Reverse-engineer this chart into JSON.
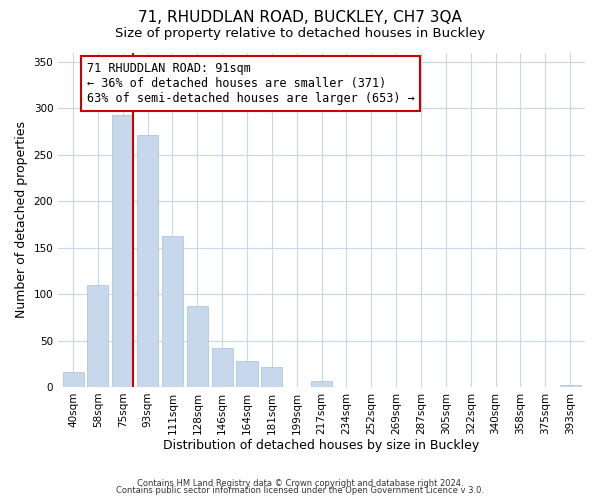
{
  "title": "71, RHUDDLAN ROAD, BUCKLEY, CH7 3QA",
  "subtitle": "Size of property relative to detached houses in Buckley",
  "xlabel": "Distribution of detached houses by size in Buckley",
  "ylabel": "Number of detached properties",
  "footer_line1": "Contains HM Land Registry data © Crown copyright and database right 2024.",
  "footer_line2": "Contains public sector information licensed under the Open Government Licence v 3.0.",
  "bar_labels": [
    "40sqm",
    "58sqm",
    "75sqm",
    "93sqm",
    "111sqm",
    "128sqm",
    "146sqm",
    "164sqm",
    "181sqm",
    "199sqm",
    "217sqm",
    "234sqm",
    "252sqm",
    "269sqm",
    "287sqm",
    "305sqm",
    "322sqm",
    "340sqm",
    "358sqm",
    "375sqm",
    "393sqm"
  ],
  "bar_values": [
    16,
    110,
    293,
    271,
    163,
    87,
    42,
    28,
    21,
    0,
    6,
    0,
    0,
    0,
    0,
    0,
    0,
    0,
    0,
    0,
    2
  ],
  "bar_color": "#c8d8ec",
  "bar_edge_color": "#a8c0d8",
  "property_line_color": "#cc0000",
  "annotation_text": "71 RHUDDLAN ROAD: 91sqm\n← 36% of detached houses are smaller (371)\n63% of semi-detached houses are larger (653) →",
  "annotation_box_color": "#ffffff",
  "annotation_box_edge": "#cc0000",
  "ylim": [
    0,
    360
  ],
  "yticks": [
    0,
    50,
    100,
    150,
    200,
    250,
    300,
    350
  ],
  "background_color": "#ffffff",
  "grid_color": "#c8d8e8",
  "title_fontsize": 11,
  "subtitle_fontsize": 9.5,
  "tick_label_fontsize": 7.5,
  "axis_label_fontsize": 9,
  "annotation_fontsize": 8.5
}
